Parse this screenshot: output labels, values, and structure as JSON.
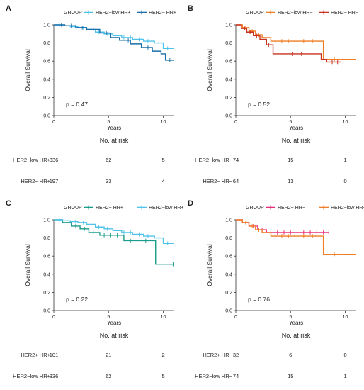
{
  "chart_data": [
    {
      "type": "line",
      "panel_label": "A",
      "legend_title": "GROUP",
      "xlabel": "Years",
      "ylabel": "Overall Survival",
      "xlim": [
        0,
        11
      ],
      "ylim": [
        0,
        1
      ],
      "xticks": [
        0,
        5,
        10
      ],
      "yticks": [
        0.0,
        0.2,
        0.4,
        0.6,
        0.8,
        1.0
      ],
      "annotation": "p = 0.47",
      "series": [
        {
          "name": "HER2−low HR+",
          "color": "#4fc3ea",
          "x": [
            0,
            0.8,
            1.5,
            2.2,
            3.0,
            3.8,
            4.6,
            5.4,
            6.2,
            7.2,
            8.2,
            9.2,
            10.0,
            11
          ],
          "y": [
            1.0,
            0.99,
            0.98,
            0.97,
            0.95,
            0.92,
            0.9,
            0.88,
            0.86,
            0.84,
            0.82,
            0.8,
            0.74,
            0.74
          ],
          "censor_x": [
            0.5,
            1.2,
            2.0,
            2.7,
            3.4,
            4.1,
            4.9,
            5.6,
            6.4,
            7.0,
            7.8,
            8.6,
            9.6,
            10.4
          ]
        },
        {
          "name": "HER2− HR+",
          "color": "#1a6faa",
          "x": [
            0,
            1.0,
            2.0,
            3.0,
            4.2,
            5.2,
            6.0,
            7.0,
            8.0,
            9.0,
            9.8,
            10.2,
            11
          ],
          "y": [
            1.0,
            0.99,
            0.97,
            0.95,
            0.91,
            0.86,
            0.83,
            0.79,
            0.75,
            0.71,
            0.68,
            0.61,
            0.61
          ],
          "censor_x": [
            0.7,
            1.6,
            2.6,
            3.6,
            4.8,
            5.6,
            6.8,
            7.6,
            8.6,
            10.6
          ]
        }
      ],
      "risk_table": {
        "title": "No. at risk",
        "times": [
          0,
          5,
          10
        ],
        "rows": [
          {
            "label": "HER2−low HR+",
            "values": [
              336,
              62,
              5
            ]
          },
          {
            "label": "HER2− HR+",
            "values": [
              197,
              33,
              4
            ]
          }
        ]
      }
    },
    {
      "type": "line",
      "panel_label": "B",
      "legend_title": "GROUP",
      "xlabel": "Years",
      "ylabel": "Overall Survival",
      "xlim": [
        0,
        11
      ],
      "ylim": [
        0,
        1
      ],
      "xticks": [
        0,
        5,
        10
      ],
      "yticks": [
        0.0,
        0.2,
        0.4,
        0.6,
        0.8,
        1.0
      ],
      "annotation": "p = 0.52",
      "series": [
        {
          "name": "HER2−low HR−",
          "color": "#f07e26",
          "x": [
            0,
            0.6,
            1.2,
            1.8,
            2.4,
            3.2,
            8.0,
            11
          ],
          "y": [
            1.0,
            0.97,
            0.93,
            0.89,
            0.86,
            0.82,
            0.62,
            0.62
          ],
          "censor_x": [
            0.9,
            1.5,
            2.1,
            3.6,
            4.2,
            4.8,
            5.4,
            6.2,
            7.0,
            9.0,
            9.8
          ]
        },
        {
          "name": "HER2− HR−",
          "color": "#c8321e",
          "x": [
            0,
            0.5,
            1.0,
            1.6,
            2.2,
            2.8,
            3.4,
            7.8,
            8.3,
            9.6
          ],
          "y": [
            1.0,
            0.96,
            0.92,
            0.88,
            0.84,
            0.78,
            0.68,
            0.62,
            0.59,
            0.59
          ],
          "censor_x": [
            0.8,
            1.3,
            1.9,
            3.0,
            4.5,
            5.2,
            6.0,
            8.8,
            9.3
          ]
        }
      ],
      "risk_table": {
        "title": "No. at risk",
        "times": [
          0,
          5,
          10
        ],
        "rows": [
          {
            "label": "HER2−low HR−",
            "values": [
              74,
              15,
              1
            ]
          },
          {
            "label": "HER2− HR−",
            "values": [
              64,
              13,
              0
            ]
          }
        ]
      }
    },
    {
      "type": "line",
      "panel_label": "C",
      "legend_title": "GROUP",
      "xlabel": "Years",
      "ylabel": "Overall Survival",
      "xlim": [
        0,
        11
      ],
      "ylim": [
        0,
        1
      ],
      "xticks": [
        0,
        5,
        10
      ],
      "yticks": [
        0.0,
        0.2,
        0.4,
        0.6,
        0.8,
        1.0
      ],
      "annotation": "p = 0.22",
      "series": [
        {
          "name": "HER2+ HR+",
          "color": "#1a9c8a",
          "x": [
            0,
            0.8,
            1.6,
            2.4,
            3.2,
            4.2,
            6.4,
            9.3,
            11
          ],
          "y": [
            1.0,
            0.97,
            0.93,
            0.9,
            0.86,
            0.83,
            0.77,
            0.51,
            0.51
          ],
          "censor_x": [
            1.2,
            2.0,
            2.8,
            3.6,
            4.6,
            5.2,
            5.8,
            7.0,
            7.6,
            8.4,
            10.9
          ]
        },
        {
          "name": "HER2−low HR+",
          "color": "#4fc3ea",
          "x": [
            0,
            0.8,
            1.5,
            2.2,
            3.0,
            3.8,
            4.6,
            5.4,
            6.2,
            7.2,
            8.2,
            9.2,
            10.0,
            11
          ],
          "y": [
            1.0,
            0.99,
            0.98,
            0.97,
            0.95,
            0.92,
            0.9,
            0.88,
            0.86,
            0.84,
            0.82,
            0.8,
            0.74,
            0.74
          ],
          "censor_x": [
            0.5,
            1.2,
            2.0,
            2.7,
            3.4,
            4.1,
            4.9,
            5.6,
            6.4,
            7.0,
            7.8,
            8.6,
            9.6,
            10.4
          ]
        }
      ],
      "risk_table": {
        "title": "No. at risk",
        "times": [
          0,
          5,
          10
        ],
        "rows": [
          {
            "label": "HER2+ HR+",
            "values": [
              101,
              21,
              2
            ]
          },
          {
            "label": "HER2−low HR+",
            "values": [
              336,
              62,
              5
            ]
          }
        ]
      }
    },
    {
      "type": "line",
      "panel_label": "D",
      "legend_title": "GROUP",
      "xlabel": "Years",
      "ylabel": "Overall Survival",
      "xlim": [
        0,
        11
      ],
      "ylim": [
        0,
        1
      ],
      "xticks": [
        0,
        5,
        10
      ],
      "yticks": [
        0.0,
        0.2,
        0.4,
        0.6,
        0.8,
        1.0
      ],
      "annotation": "p = 0.76",
      "series": [
        {
          "name": "HER2+ HR−",
          "color": "#e8307a",
          "x": [
            0,
            0.6,
            1.2,
            2.0,
            2.8,
            8.5
          ],
          "y": [
            1.0,
            0.97,
            0.93,
            0.89,
            0.86,
            0.86
          ],
          "censor_x": [
            1.6,
            2.4,
            3.2,
            3.8,
            4.4,
            5.0,
            5.6,
            6.2,
            6.8,
            7.4,
            8.0,
            8.5
          ]
        },
        {
          "name": "HER2−low HR−",
          "color": "#f07e26",
          "x": [
            0,
            0.6,
            1.2,
            1.8,
            2.4,
            3.2,
            8.0,
            11
          ],
          "y": [
            1.0,
            0.97,
            0.93,
            0.89,
            0.86,
            0.82,
            0.62,
            0.62
          ],
          "censor_x": [
            0.9,
            1.5,
            2.1,
            3.6,
            4.2,
            4.8,
            5.4,
            6.2,
            7.0,
            9.0,
            9.8
          ]
        }
      ],
      "risk_table": {
        "title": "No. at risk",
        "times": [
          0,
          5,
          10
        ],
        "rows": [
          {
            "label": "HER2+ HR−",
            "values": [
              32,
              6,
              0
            ]
          },
          {
            "label": "HER2−low HR−",
            "values": [
              74,
              15,
              1
            ]
          }
        ]
      }
    }
  ]
}
